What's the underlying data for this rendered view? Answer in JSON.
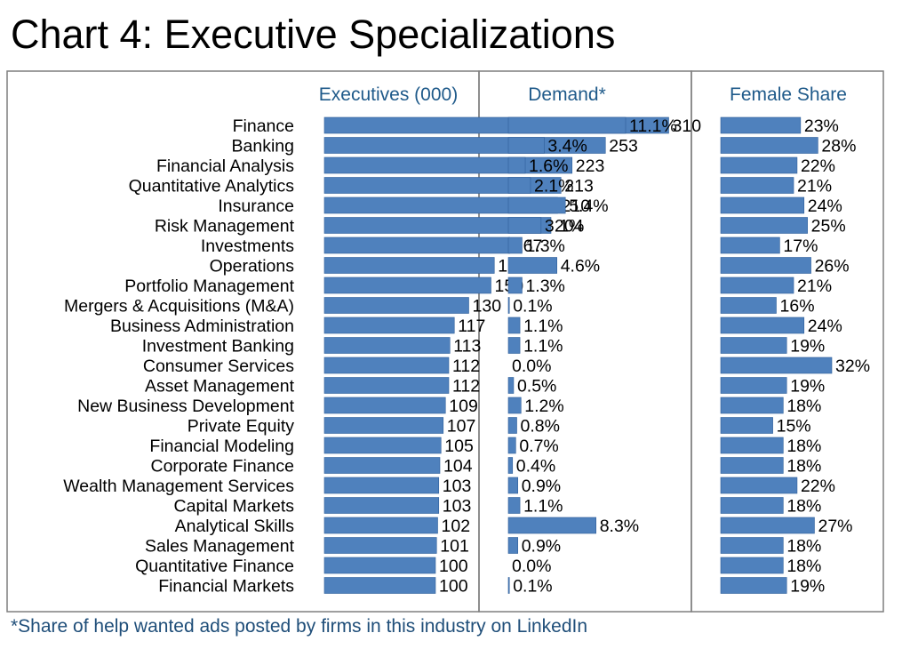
{
  "title": "Chart 4: Executive Specializations",
  "footnote": "*Share of help wanted ads posted by firms in this industry on LinkedIn",
  "colors": {
    "bar": "#4f81bd",
    "bar_edge": "#2f5f9a",
    "panel_border": "#7f7f7f",
    "header_text": "#1f5a8a",
    "footnote_text": "#1f4e79"
  },
  "chart_data": {
    "type": "bar",
    "orientation": "horizontal",
    "categories": [
      "Finance",
      "Banking",
      "Financial Analysis",
      "Quantitative Analytics",
      "Insurance",
      "Risk Management",
      "Investments",
      "Operations",
      "Portfolio Management",
      "Mergers & Acquisitions (M&A)",
      "Business Administration",
      "Investment Banking",
      "Consumer Services",
      "Asset Management",
      "New Business Development",
      "Private Equity",
      "Financial Modeling",
      "Corporate Finance",
      "Wealth Management Services",
      "Capital Markets",
      "Analytical Skills",
      "Sales Management",
      "Quantitative Finance",
      "Financial Markets"
    ],
    "series": [
      {
        "name": "Executives (000)",
        "values": [
          310,
          253,
          223,
          213,
          210,
          204,
          167,
          153,
          150,
          130,
          117,
          113,
          112,
          112,
          109,
          107,
          105,
          104,
          103,
          103,
          102,
          101,
          100,
          100
        ],
        "labels": [
          "310",
          "253",
          "223",
          "213",
          "210",
          "204",
          "167",
          "153",
          "150",
          "130",
          "117",
          "113",
          "112",
          "112",
          "109",
          "107",
          "105",
          "104",
          "103",
          "103",
          "102",
          "101",
          "100",
          "100"
        ]
      },
      {
        "name": "Demand*",
        "values": [
          11.1,
          3.4,
          1.6,
          2.1,
          5.4,
          3.1,
          1.3,
          4.6,
          1.3,
          0.1,
          1.1,
          1.1,
          0.0,
          0.5,
          1.2,
          0.8,
          0.7,
          0.4,
          0.9,
          1.1,
          8.3,
          0.9,
          0.0,
          0.1
        ],
        "labels": [
          "11.1%",
          "3.4%",
          "1.6%",
          "2.1%",
          "5.4%",
          "3.1%",
          "1.3%",
          "4.6%",
          "1.3%",
          "0.1%",
          "1.1%",
          "1.1%",
          "0.0%",
          "0.5%",
          "1.2%",
          "0.8%",
          "0.7%",
          "0.4%",
          "0.9%",
          "1.1%",
          "8.3%",
          "0.9%",
          "0.0%",
          "0.1%"
        ]
      },
      {
        "name": "Female Share",
        "values": [
          23,
          28,
          22,
          21,
          24,
          25,
          17,
          26,
          21,
          16,
          24,
          19,
          32,
          19,
          18,
          15,
          18,
          18,
          22,
          18,
          27,
          18,
          18,
          19
        ],
        "labels": [
          "23%",
          "28%",
          "22%",
          "21%",
          "24%",
          "25%",
          "17%",
          "26%",
          "21%",
          "16%",
          "24%",
          "19%",
          "32%",
          "19%",
          "18%",
          "15%",
          "18%",
          "18%",
          "22%",
          "18%",
          "27%",
          "18%",
          "18%",
          "19%"
        ]
      }
    ],
    "grid": false,
    "legend": "none"
  }
}
